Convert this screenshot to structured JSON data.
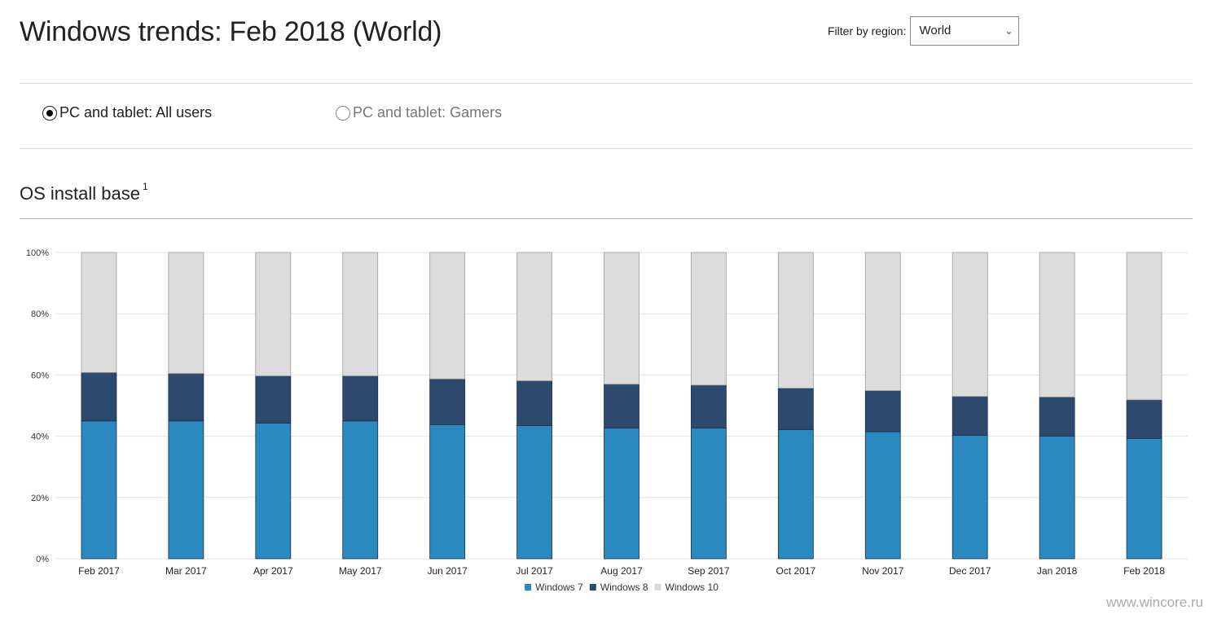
{
  "header": {
    "title": "Windows trends: Feb 2018 (World)",
    "filter_label": "Filter by region:",
    "filter_value": "World"
  },
  "audience": {
    "options": [
      {
        "label": "PC and tablet: All users",
        "selected": true
      },
      {
        "label": "PC and tablet: Gamers",
        "selected": false
      }
    ]
  },
  "section": {
    "title": "OS install base",
    "footnote": "1"
  },
  "watermark": "www.wincore.ru",
  "chart_data": {
    "type": "bar",
    "stacked": true,
    "categories": [
      "Feb 2017",
      "Mar 2017",
      "Apr 2017",
      "May 2017",
      "Jun 2017",
      "Jul 2017",
      "Aug 2017",
      "Sep 2017",
      "Oct 2017",
      "Nov 2017",
      "Dec 2017",
      "Jan 2018",
      "Feb 2018"
    ],
    "series": [
      {
        "name": "Windows 7",
        "color": "#2a89bf",
        "values": [
          45,
          45,
          44.3,
          45,
          43.8,
          43.5,
          42.7,
          42.7,
          42.2,
          41.5,
          40.3,
          40,
          39.3
        ]
      },
      {
        "name": "Windows 8",
        "color": "#2d4a6e",
        "values": [
          15.8,
          15.5,
          15.4,
          14.7,
          14.9,
          14.6,
          14.3,
          14,
          13.5,
          13.4,
          12.7,
          12.8,
          12.6
        ]
      },
      {
        "name": "Windows 10",
        "color": "#dcdcdc",
        "values": [
          39.2,
          39.5,
          40.3,
          40.3,
          41.3,
          41.9,
          43,
          43.3,
          44.3,
          45.1,
          47,
          47.2,
          48.1
        ]
      }
    ],
    "yticks": [
      "0%",
      "20%",
      "40%",
      "60%",
      "80%",
      "100%"
    ],
    "ylim": [
      0,
      100
    ],
    "grid": true,
    "legend_position": "bottom"
  }
}
